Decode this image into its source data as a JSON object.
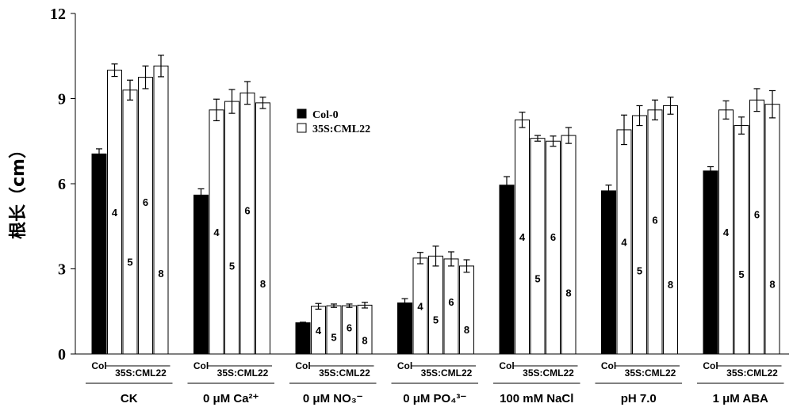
{
  "chart_data": {
    "type": "bar",
    "ylabel": "根长（cm）",
    "ylim": [
      0,
      12
    ],
    "yticks": [
      0,
      3,
      6,
      9,
      12
    ],
    "legend": {
      "placement": "center",
      "entries": [
        {
          "name": "Col-0",
          "color": "#000000"
        },
        {
          "name": "35S:CML22",
          "color": "#ffffff"
        }
      ]
    },
    "bar_labels": [
      "Col",
      "4",
      "5",
      "6",
      "8"
    ],
    "transgenic_group_label": "35S:CML22",
    "groups": [
      {
        "name": "CK",
        "values": [
          7.05,
          10.0,
          9.3,
          9.75,
          10.15
        ],
        "errors": [
          0.18,
          0.22,
          0.35,
          0.4,
          0.38
        ]
      },
      {
        "name": "0 μM Ca²⁺",
        "values": [
          5.6,
          8.6,
          8.9,
          9.2,
          8.85
        ],
        "errors": [
          0.22,
          0.38,
          0.42,
          0.4,
          0.2
        ]
      },
      {
        "name": "0 μM NO₃⁻",
        "values": [
          1.1,
          1.68,
          1.7,
          1.7,
          1.72
        ],
        "errors": [
          0.02,
          0.1,
          0.06,
          0.06,
          0.1
        ]
      },
      {
        "name": "0 μM PO₄³⁻",
        "values": [
          1.8,
          3.38,
          3.45,
          3.35,
          3.1
        ],
        "errors": [
          0.15,
          0.2,
          0.35,
          0.25,
          0.22
        ]
      },
      {
        "name": "100 mM NaCl",
        "values": [
          5.95,
          8.25,
          7.6,
          7.5,
          7.7
        ],
        "errors": [
          0.3,
          0.27,
          0.1,
          0.18,
          0.28
        ]
      },
      {
        "name": "pH 7.0",
        "values": [
          5.75,
          7.9,
          8.4,
          8.6,
          8.75
        ],
        "errors": [
          0.2,
          0.52,
          0.35,
          0.35,
          0.3
        ]
      },
      {
        "name": "1 μM ABA",
        "values": [
          6.45,
          8.6,
          8.05,
          8.95,
          8.8
        ],
        "errors": [
          0.15,
          0.32,
          0.3,
          0.4,
          0.48
        ]
      }
    ]
  }
}
